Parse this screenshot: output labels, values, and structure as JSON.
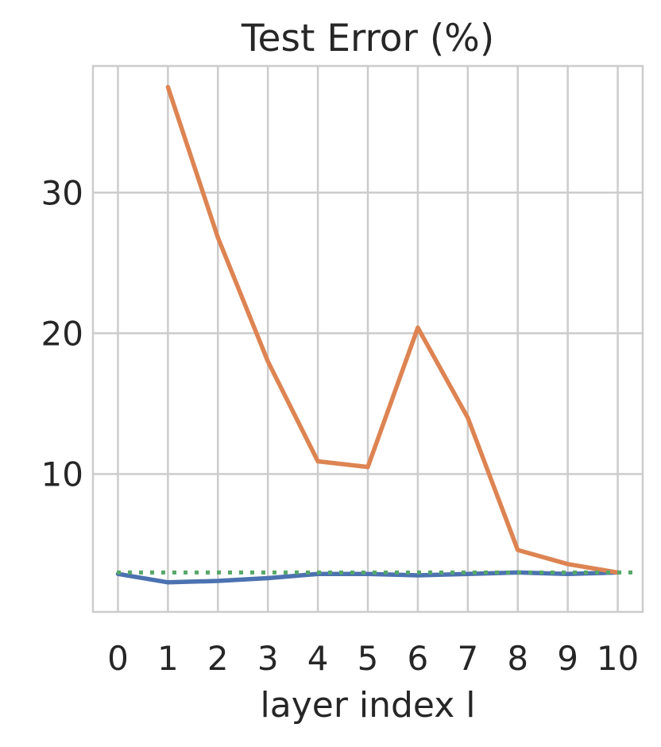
{
  "chart_data": {
    "type": "line",
    "title": "Test Error (%)",
    "xlabel": "layer index l",
    "ylabel": "",
    "x_ticks": [
      0,
      1,
      2,
      3,
      4,
      5,
      6,
      7,
      8,
      9,
      10
    ],
    "y_ticks": [
      10,
      20,
      30
    ],
    "xlim": [
      -0.5,
      10.5
    ],
    "ylim": [
      0.2,
      39.0
    ],
    "grid": true,
    "series": [
      {
        "color": "#4c72b0",
        "style": "solid",
        "x": [
          0,
          1,
          2,
          3,
          4,
          5,
          6,
          7,
          8,
          9,
          10
        ],
        "values": [
          2.9,
          2.3,
          2.4,
          2.6,
          2.9,
          2.9,
          2.8,
          2.9,
          3.0,
          2.9,
          3.0
        ]
      },
      {
        "color": "#dd8452",
        "style": "solid",
        "x": [
          1,
          2,
          3,
          4,
          5,
          6,
          7,
          8,
          9,
          10
        ],
        "values": [
          37.5,
          26.8,
          18.0,
          10.9,
          10.5,
          20.4,
          14.0,
          4.6,
          3.6,
          3.0
        ]
      },
      {
        "color": "#55a868",
        "style": "dotted",
        "type": "hline",
        "values": [
          3.0
        ]
      }
    ]
  }
}
